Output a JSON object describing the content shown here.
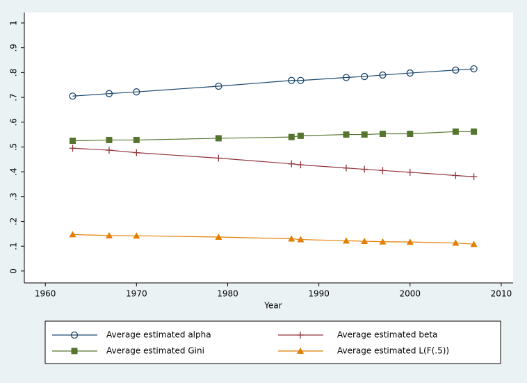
{
  "chart_data": {
    "type": "line",
    "x_label": "Year",
    "x": [
      1963,
      1967,
      1970,
      1979,
      1987,
      1988,
      1993,
      1995,
      1997,
      2000,
      2005,
      2007
    ],
    "series": [
      {
        "name": "Average estimated alpha",
        "color": "#1a476f",
        "marker": "hollow-circle",
        "values": [
          0.705,
          0.715,
          0.722,
          0.745,
          0.768,
          0.768,
          0.78,
          0.784,
          0.79,
          0.798,
          0.81,
          0.815
        ]
      },
      {
        "name": "Average estimated beta",
        "color": "#90353b",
        "marker": "plus",
        "values": [
          0.495,
          0.487,
          0.477,
          0.455,
          0.432,
          0.428,
          0.415,
          0.41,
          0.405,
          0.398,
          0.385,
          0.38
        ]
      },
      {
        "name": "Average estimated Gini",
        "color": "#55752f",
        "marker": "square",
        "values": [
          0.525,
          0.528,
          0.528,
          0.535,
          0.54,
          0.545,
          0.55,
          0.55,
          0.553,
          0.553,
          0.562,
          0.562
        ]
      },
      {
        "name": "Average estimated L(F(.5))",
        "color": "#e37e00",
        "marker": "triangle",
        "values": [
          0.147,
          0.143,
          0.142,
          0.137,
          0.13,
          0.127,
          0.122,
          0.12,
          0.118,
          0.117,
          0.113,
          0.108
        ]
      }
    ],
    "xlim": [
      1957.7,
      2011.3
    ],
    "xticks": [
      1960,
      1970,
      1980,
      1990,
      2000,
      2010
    ],
    "ylim": [
      -0.048,
      1.042
    ],
    "yticks": [
      0,
      {
        "value": 0.1,
        "label": ".1"
      },
      {
        "value": 0.2,
        "label": ".2"
      },
      {
        "value": 0.3,
        "label": ".3"
      },
      {
        "value": 0.4,
        "label": ".4"
      },
      {
        "value": 0.5,
        "label": ".5"
      },
      {
        "value": 0.6,
        "label": ".6"
      },
      {
        "value": 0.7,
        "label": ".7"
      },
      {
        "value": 0.8,
        "label": ".8"
      },
      {
        "value": 0.9,
        "label": ".9"
      },
      1
    ],
    "legend": "bottom"
  }
}
